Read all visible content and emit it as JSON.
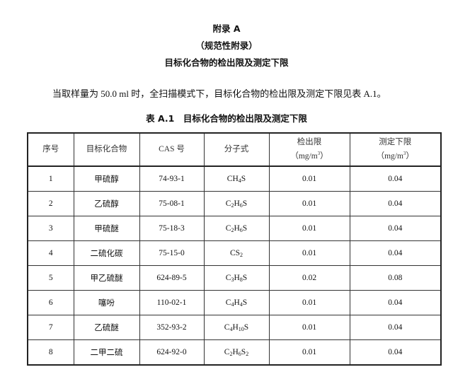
{
  "heading": {
    "appendix": "附录 A",
    "type": "（规范性附录）",
    "title": "目标化合物的检出限及测定下限"
  },
  "paragraph": "当取样量为 50.0 ml 时，全扫描模式下，目标化合物的检出限及测定下限见表 A.1。",
  "table": {
    "caption": "表 A.1　目标化合物的检出限及测定下限",
    "headers": {
      "no": "序号",
      "compound": "目标化合物",
      "cas": "CAS 号",
      "formula": "分子式",
      "lod": "检出限",
      "loq": "测定下限",
      "unit_open": "（mg/m",
      "unit_sup": "3",
      "unit_close": "）"
    },
    "rows": [
      {
        "no": "1",
        "compound": "甲硫醇",
        "cas": "74-93-1",
        "formula": [
          [
            "C",
            ""
          ],
          [
            "H",
            "4"
          ],
          [
            "S",
            ""
          ]
        ],
        "lod": "0.01",
        "loq": "0.04"
      },
      {
        "no": "2",
        "compound": "乙硫醇",
        "cas": "75-08-1",
        "formula": [
          [
            "C",
            "2"
          ],
          [
            "H",
            "6"
          ],
          [
            "S",
            ""
          ]
        ],
        "lod": "0.01",
        "loq": "0.04"
      },
      {
        "no": "3",
        "compound": "甲硫醚",
        "cas": "75-18-3",
        "formula": [
          [
            "C",
            "2"
          ],
          [
            "H",
            "6"
          ],
          [
            "S",
            ""
          ]
        ],
        "lod": "0.01",
        "loq": "0.04"
      },
      {
        "no": "4",
        "compound": "二硫化碳",
        "cas": "75-15-0",
        "formula": [
          [
            "C",
            ""
          ],
          [
            "S",
            "2"
          ]
        ],
        "lod": "0.01",
        "loq": "0.04"
      },
      {
        "no": "5",
        "compound": "甲乙硫醚",
        "cas": "624-89-5",
        "formula": [
          [
            "C",
            "3"
          ],
          [
            "H",
            "8"
          ],
          [
            "S",
            ""
          ]
        ],
        "lod": "0.02",
        "loq": "0.08"
      },
      {
        "no": "6",
        "compound": "噻吩",
        "cas": "110-02-1",
        "formula": [
          [
            "C",
            "4"
          ],
          [
            "H",
            "4"
          ],
          [
            "S",
            ""
          ]
        ],
        "lod": "0.01",
        "loq": "0.04"
      },
      {
        "no": "7",
        "compound": "乙硫醚",
        "cas": "352-93-2",
        "formula": [
          [
            "C",
            "4"
          ],
          [
            "H",
            "10"
          ],
          [
            "S",
            ""
          ]
        ],
        "lod": "0.01",
        "loq": "0.04"
      },
      {
        "no": "8",
        "compound": "二甲二硫",
        "cas": "624-92-0",
        "formula": [
          [
            "C",
            "2"
          ],
          [
            "H",
            "6"
          ],
          [
            "S",
            "2"
          ]
        ],
        "lod": "0.01",
        "loq": "0.04"
      }
    ]
  }
}
